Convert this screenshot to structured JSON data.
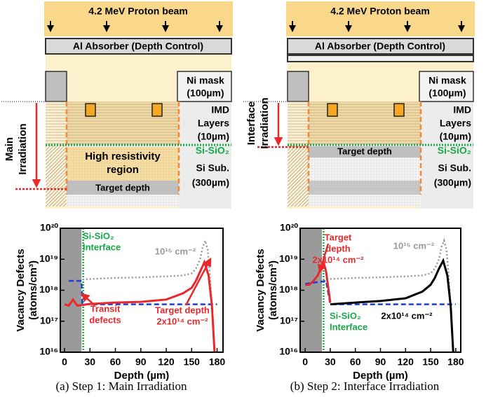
{
  "panels": [
    {
      "beam": "4.2 MeV Proton beam",
      "absorber": "Al Absorber (Depth Control)",
      "ni_mask": [
        "Ni mask",
        "(100µm)"
      ],
      "imd": [
        "IMD",
        "Layers",
        "(10µm)"
      ],
      "si_sio2": "Si-SiO₂",
      "si_sub": [
        "Si Sub.",
        "(300µm)"
      ],
      "irradiation": [
        "Main",
        "Irradiation"
      ],
      "region": [
        "High resistivity",
        "region"
      ],
      "target": "Target depth",
      "caption": "(a) Step 1: Main Irradiation"
    },
    {
      "beam": "4.2 MeV Proton beam",
      "absorber": "Al Absorber (Depth Control)",
      "ni_mask": [
        "Ni mask",
        "(100µm)"
      ],
      "imd": [
        "IMD",
        "Layers",
        "(10µm)"
      ],
      "si_sio2": "Si-SiO₂",
      "si_sub": [
        "Si Sub.",
        "(300µm)"
      ],
      "irradiation": [
        "Interface",
        "Irradiation"
      ],
      "target": "Target depth",
      "caption": "(b) Step 2: Interface Irradiation"
    }
  ],
  "chart_data": [
    {
      "type": "line",
      "ylabel": [
        "Vacancy Defects",
        "(atoms/cm³)"
      ],
      "xlabel": "Depth (µm)",
      "xlim": [
        -5,
        187
      ],
      "ylim": [
        1e+16,
        1e+20
      ],
      "log_y": true,
      "xticks": [
        0,
        30,
        60,
        90,
        120,
        150,
        180
      ],
      "yticks": [
        {
          "value": 1e+16,
          "label": "10¹⁶"
        },
        {
          "value": 1e+17,
          "label": "10¹⁷"
        },
        {
          "value": 1e+18,
          "label": "10¹⁸"
        },
        {
          "value": 1e+19,
          "label": "10¹⁹"
        },
        {
          "value": 1e+20,
          "label": "10²⁰"
        }
      ],
      "series": [
        {
          "name": "10¹⁵ cm⁻²",
          "color": "#999999",
          "style": "dotted",
          "x": [
            5,
            10,
            20,
            30,
            60,
            90,
            120,
            140,
            150,
            155,
            160,
            163,
            166,
            169,
            172,
            175,
            177
          ],
          "values": [
            2e+18,
            2.2e+18,
            2.2e+18,
            2.3e+18,
            2.5e+18,
            2.6e+18,
            2.8e+18,
            3e+18,
            3.5e+18,
            5e+18,
            1e+19,
            2.5e+19,
            4e+19,
            2e+19,
            2e+18,
            1e+17,
            1e+16
          ]
        },
        {
          "color": "#1f3fd0",
          "style": "dashed",
          "x": [
            5,
            20,
            21,
            180
          ],
          "values": [
            2e+18,
            2e+18,
            3.5e+17,
            3.5e+17
          ]
        },
        {
          "color": "#e8282b",
          "style": "solid",
          "x": [
            0,
            5,
            10,
            15,
            20,
            30,
            60,
            90,
            120,
            140,
            150,
            155,
            160,
            165,
            170,
            174,
            177
          ],
          "values": [
            3.5e+17,
            3.2e+17,
            5e+17,
            3.2e+17,
            3.3e+17,
            3.6e+17,
            4e+17,
            4.2e+17,
            5e+17,
            8e+17,
            1.2e+18,
            2e+18,
            4e+18,
            8e+18,
            3e+18,
            3e+17,
            1e+16
          ]
        }
      ],
      "annotations": [
        [
          "Si-SiO₂",
          "Interface"
        ],
        [
          "Transit",
          "defects"
        ],
        [
          "Target depth",
          "2x10¹⁴ cm⁻²"
        ]
      ]
    },
    {
      "type": "line",
      "ylabel": [
        "Vacancy Defects",
        "(atoms/cm³)"
      ],
      "xlabel": "Depth (µm)",
      "xlim": [
        -6,
        186
      ],
      "ylim": [
        1e+16,
        1e+20
      ],
      "log_y": true,
      "xticks": [
        0,
        30,
        60,
        90,
        120,
        150,
        180
      ],
      "yticks": [
        {
          "value": 1e+16,
          "label": "10¹⁶"
        },
        {
          "value": 1e+17,
          "label": "10¹⁷"
        },
        {
          "value": 1e+18,
          "label": "10¹⁸"
        },
        {
          "value": 1e+19,
          "label": "10¹⁹"
        },
        {
          "value": 1e+20,
          "label": "10²⁰"
        }
      ],
      "series": [
        {
          "name": "10¹⁵ cm⁻²",
          "color": "#999999",
          "style": "dotted",
          "x": [
            5,
            10,
            20,
            30,
            60,
            90,
            120,
            140,
            150,
            155,
            160,
            163,
            166,
            169,
            172,
            175,
            177
          ],
          "values": [
            2e+18,
            2.2e+18,
            2.2e+18,
            2.3e+18,
            2.5e+18,
            2.6e+18,
            2.8e+18,
            3e+18,
            3.5e+18,
            5e+18,
            1e+19,
            2.5e+19,
            4e+19,
            2e+19,
            2e+18,
            1e+17,
            1e+16
          ]
        },
        {
          "color": "#1f3fd0",
          "style": "dashed",
          "x": [
            0,
            25,
            30,
            180
          ],
          "values": [
            1.6e+18,
            2e+18,
            3.5e+17,
            3.5e+17
          ]
        },
        {
          "name": "2x10¹⁴ cm⁻²",
          "color": "#000000",
          "style": "solid",
          "x": [
            30,
            60,
            90,
            120,
            140,
            150,
            155,
            160,
            165,
            170,
            174,
            177
          ],
          "values": [
            3.5e+17,
            4e+17,
            4.5e+17,
            5.5e+17,
            9e+17,
            1.5e+18,
            2.5e+18,
            5e+18,
            9e+18,
            3e+18,
            3e+17,
            1e+16
          ]
        },
        {
          "color": "#e8282b",
          "style": "solid",
          "x": [
            0,
            5,
            10,
            15,
            20,
            22,
            25,
            28,
            30
          ],
          "values": [
            1.5e+18,
            1.5e+18,
            2e+18,
            3e+18,
            6e+18,
            8e+18,
            4e+18,
            1e+18,
            4e+17
          ]
        }
      ],
      "annotations": [
        [
          "Target",
          "depth",
          "2x10¹⁴ cm⁻²"
        ],
        [
          "Si-SiO₂",
          "Interface"
        ]
      ]
    }
  ]
}
